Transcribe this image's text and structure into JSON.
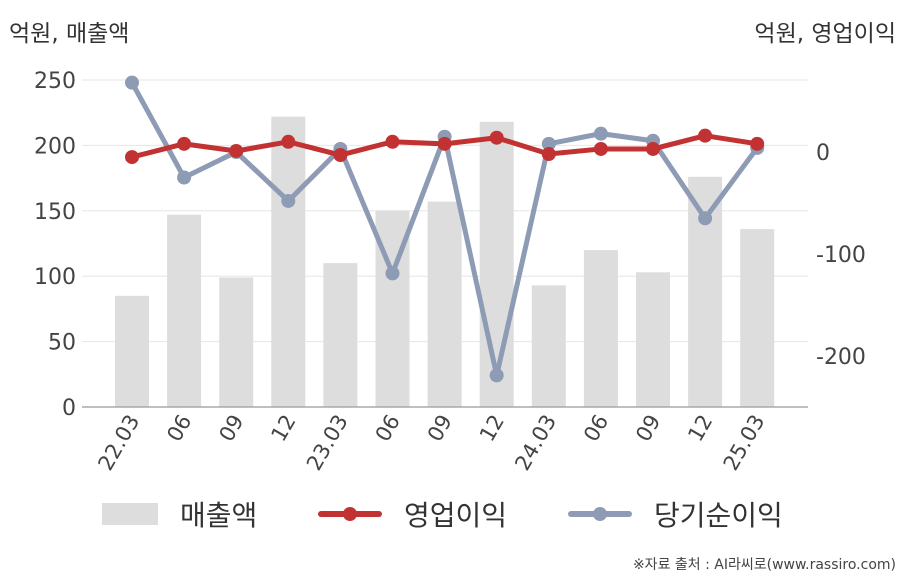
{
  "chart_data": {
    "type": "bar+line",
    "categories": [
      "22.03",
      "06",
      "09",
      "12",
      "23.03",
      "06",
      "09",
      "12",
      "24.03",
      "06",
      "09",
      "12",
      "25.03"
    ],
    "left_axis": {
      "label": "억원, 매출액",
      "ylim": [
        0,
        250
      ],
      "ticks": [
        0,
        50,
        100,
        150,
        200,
        250
      ]
    },
    "right_axis": {
      "label": "억원, 영업이익",
      "ticks": [
        0,
        -100,
        -200
      ]
    },
    "series": [
      {
        "name": "매출액",
        "type": "bar",
        "axis": "left",
        "color": "#dddddd",
        "values": [
          85,
          147,
          99,
          222,
          110,
          150,
          157,
          218,
          93,
          120,
          103,
          176,
          136
        ]
      },
      {
        "name": "영업이익",
        "type": "line",
        "axis": "right",
        "color": "#c23232",
        "values": [
          -5,
          8,
          1,
          10,
          -3,
          10,
          8,
          14,
          -2,
          3,
          3,
          16,
          8
        ]
      },
      {
        "name": "당기순이익",
        "type": "line",
        "axis": "right",
        "color": "#8e9bb5",
        "values": [
          68,
          -25,
          0,
          -48,
          3,
          -119,
          15,
          -219,
          8,
          18,
          11,
          -65,
          4
        ]
      }
    ],
    "grid": true,
    "legend_position": "bottom"
  },
  "source": "※자료 출처 : AI라씨로(www.rassiro.com)"
}
